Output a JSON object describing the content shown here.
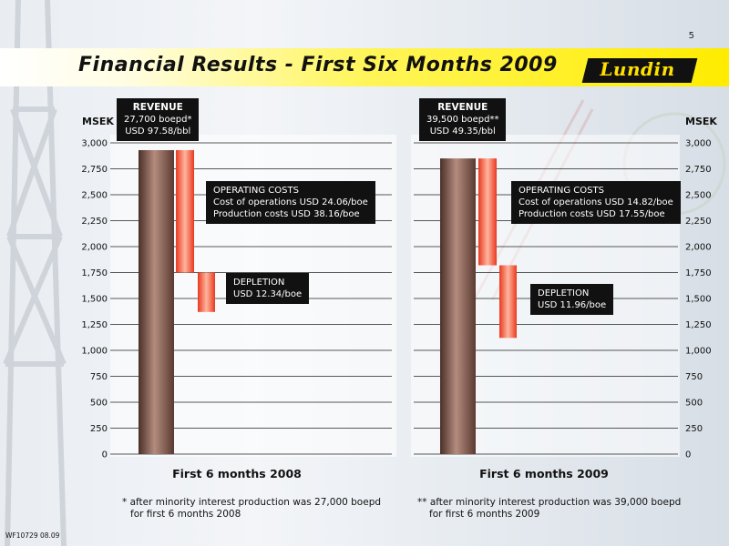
{
  "page_number": "5",
  "title": "Financial Results - First Six Months 2009",
  "logo_text": "Lundin",
  "doc_code": "WF10729 08.09",
  "colors": {
    "accent_yellow": "#ffea00",
    "revenue_bar": "#6f4d43",
    "cost_bar": "#ff6a4b",
    "callout_bg": "#111111"
  },
  "chart_data": [
    {
      "type": "bar",
      "subtype": "waterfall",
      "ylabel": "MSEK",
      "ylim": [
        0,
        3000
      ],
      "yticks": [
        "0",
        "250",
        "500",
        "750",
        "1,000",
        "1,250",
        "1,500",
        "1,750",
        "2,000",
        "2,250",
        "2,500",
        "2,750",
        "3,000"
      ],
      "caption": "First 6 months 2008",
      "bars": [
        {
          "label": "REVENUE",
          "lines": [
            "27,700 boepd*",
            "USD 97.58/bbl"
          ],
          "start": 0,
          "end": 2930
        },
        {
          "label": "OPERATING COSTS",
          "lines": [
            "Cost of operations USD 24.06/boe",
            "Production costs USD 38.16/boe"
          ],
          "start": 1750,
          "end": 2930
        },
        {
          "label": "DEPLETION",
          "lines": [
            "USD 12.34/boe"
          ],
          "start": 1370,
          "end": 1750
        }
      ],
      "footnote": [
        "* after minority interest production was 27,000 boepd",
        "for first 6 months 2008"
      ]
    },
    {
      "type": "bar",
      "subtype": "waterfall",
      "ylabel": "MSEK",
      "ylim": [
        0,
        3000
      ],
      "yticks": [
        "0",
        "250",
        "500",
        "750",
        "1,000",
        "1,250",
        "1,500",
        "1,750",
        "2,000",
        "2,250",
        "2,500",
        "2,750",
        "3,000"
      ],
      "caption": "First 6 months 2009",
      "bars": [
        {
          "label": "REVENUE",
          "lines": [
            "39,500 boepd**",
            "USD 49.35/bbl"
          ],
          "start": 0,
          "end": 2850
        },
        {
          "label": "OPERATING COSTS",
          "lines": [
            "Cost of operations USD 14.82/boe",
            "Production costs USD 17.55/boe"
          ],
          "start": 1820,
          "end": 2850
        },
        {
          "label": "DEPLETION",
          "lines": [
            "USD 11.96/boe"
          ],
          "start": 1120,
          "end": 1820
        }
      ],
      "footnote": [
        "** after minority interest production was 39,000 boepd",
        "for first 6 months 2009"
      ]
    }
  ]
}
